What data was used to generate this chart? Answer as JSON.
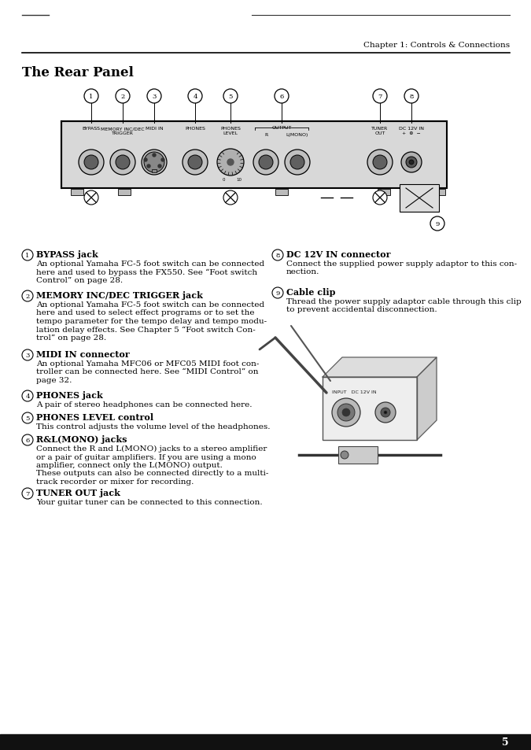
{
  "bg_color": "#ffffff",
  "header_chapter": "Chapter 1: Controls & Connections",
  "section_title": "The Rear Panel",
  "footer_page": "5",
  "items_left": [
    {
      "num": "1",
      "title": "BYPASS jack",
      "body": "An optional Yamaha FC-5 foot switch can be connected\nhere and used to bypass the FX550. See “Foot switch\nControl” on page 28."
    },
    {
      "num": "2",
      "title": "MEMORY INC/DEC TRIGGER jack",
      "body": "An optional Yamaha FC-5 foot switch can be connected\nhere and used to select effect programs or to set the\ntempo parameter for the tempo delay and tempo modu-\nlation delay effects. See Chapter 5 “Foot switch Con-\ntrol” on page 28."
    },
    {
      "num": "3",
      "title": "MIDI IN connector",
      "body": "An optional Yamaha MFC06 or MFC05 MIDI foot con-\ntroller can be connected here. See “MIDI Control” on\npage 32."
    },
    {
      "num": "4",
      "title": "PHONES jack",
      "body": "A pair of stereo headphones can be connected here."
    },
    {
      "num": "5",
      "title": "PHONES LEVEL control",
      "body": "This control adjusts the volume level of the headphones."
    },
    {
      "num": "6",
      "title": "R&L(MONO) jacks",
      "body": "Connect the R and L(MONO) jacks to a stereo amplifier\nor a pair of guitar amplifiers. If you are using a mono\namplifier, connect only the L(MONO) output.\nThese outputs can also be connected directly to a multi-\ntrack recorder or mixer for recording."
    },
    {
      "num": "7",
      "title": "TUNER OUT jack",
      "body": "Your guitar tuner can be connected to this connection."
    }
  ],
  "items_right": [
    {
      "num": "8",
      "title": "DC 12V IN connector",
      "body": "Connect the supplied power supply adaptor to this con-\nnection."
    },
    {
      "num": "9",
      "title": "Cable clip",
      "body": "Thread the power supply adaptor cable through this clip\nto prevent accidental disconnection."
    }
  ]
}
